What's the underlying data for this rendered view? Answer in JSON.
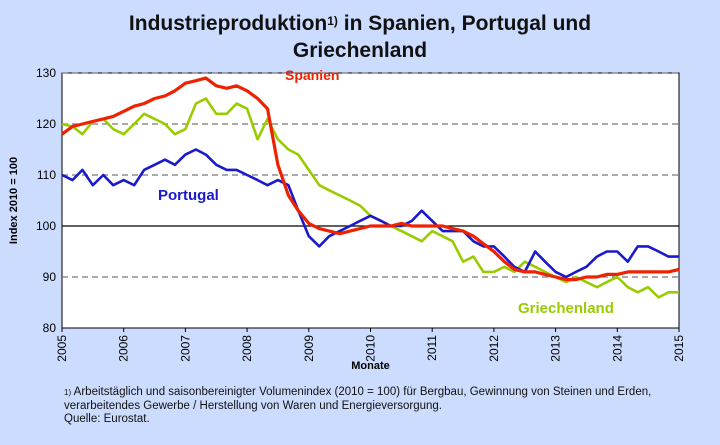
{
  "title": {
    "line1": "Industrieproduktion",
    "sup": "1)",
    "line1_rest": " in Spanien, Portugal und",
    "line2": "Griechenland"
  },
  "footnote": {
    "marker": "1)",
    "text": " Arbeitstäglich und saisonbereinigter Volumenindex (2010 = 100) für Bergbau, Gewinnung von Steinen und Erden, verarbeitendes Gewerbe / Herstellung von Waren und Energieversorgung.",
    "source": "Quelle: Eurostat."
  },
  "chart_data": {
    "type": "line",
    "xlabel": "Monate",
    "ylabel": "Index 2010 = 100",
    "xlim": [
      2005,
      2015
    ],
    "ylim": [
      80,
      130
    ],
    "yticks": [
      80,
      90,
      100,
      110,
      120,
      130
    ],
    "xticks": [
      "2005",
      "2006",
      "2007",
      "2008",
      "2009",
      "2010",
      "2011",
      "2012",
      "2013",
      "2014",
      "2015"
    ],
    "grid": "horizontal-dashed",
    "series": [
      {
        "name": "Griechenland",
        "color": "#99cc00",
        "x": [
          2005.0,
          2005.17,
          2005.33,
          2005.5,
          2005.67,
          2005.83,
          2006.0,
          2006.17,
          2006.33,
          2006.5,
          2006.67,
          2006.83,
          2007.0,
          2007.17,
          2007.33,
          2007.5,
          2007.67,
          2007.83,
          2008.0,
          2008.17,
          2008.33,
          2008.5,
          2008.67,
          2008.83,
          2009.0,
          2009.17,
          2009.33,
          2009.5,
          2009.67,
          2009.83,
          2010.0,
          2010.17,
          2010.33,
          2010.5,
          2010.67,
          2010.83,
          2011.0,
          2011.17,
          2011.33,
          2011.5,
          2011.67,
          2011.83,
          2012.0,
          2012.17,
          2012.33,
          2012.5,
          2012.67,
          2012.83,
          2013.0,
          2013.17,
          2013.33,
          2013.5,
          2013.67,
          2013.83,
          2014.0,
          2014.17,
          2014.33,
          2014.5,
          2014.67,
          2014.83,
          2015.0
        ],
        "values": [
          120,
          119.5,
          118,
          120.5,
          121,
          119,
          118,
          120,
          122,
          121,
          120,
          118,
          119,
          124,
          125,
          122,
          122,
          124,
          123,
          117,
          121,
          117,
          115,
          114,
          111,
          108,
          107,
          106,
          105,
          104,
          102,
          101,
          100,
          99,
          98,
          97,
          99,
          98,
          97,
          93,
          94,
          91,
          91,
          92,
          91,
          93,
          92,
          91,
          90,
          89,
          90,
          89,
          88,
          89,
          90,
          88,
          87,
          88,
          86,
          87,
          87
        ]
      },
      {
        "name": "Portugal",
        "color": "#1a1acc",
        "x": [
          2005.0,
          2005.17,
          2005.33,
          2005.5,
          2005.67,
          2005.83,
          2006.0,
          2006.17,
          2006.33,
          2006.5,
          2006.67,
          2006.83,
          2007.0,
          2007.17,
          2007.33,
          2007.5,
          2007.67,
          2007.83,
          2008.0,
          2008.17,
          2008.33,
          2008.5,
          2008.67,
          2008.83,
          2009.0,
          2009.17,
          2009.33,
          2009.5,
          2009.67,
          2009.83,
          2010.0,
          2010.17,
          2010.33,
          2010.5,
          2010.67,
          2010.83,
          2011.0,
          2011.17,
          2011.33,
          2011.5,
          2011.67,
          2011.83,
          2012.0,
          2012.17,
          2012.33,
          2012.5,
          2012.67,
          2012.83,
          2013.0,
          2013.17,
          2013.33,
          2013.5,
          2013.67,
          2013.83,
          2014.0,
          2014.17,
          2014.33,
          2014.5,
          2014.67,
          2014.83,
          2015.0
        ],
        "values": [
          110,
          109,
          111,
          108,
          110,
          108,
          109,
          108,
          111,
          112,
          113,
          112,
          114,
          115,
          114,
          112,
          111,
          111,
          110,
          109,
          108,
          109,
          108,
          103,
          98,
          96,
          98,
          99,
          100,
          101,
          102,
          101,
          100,
          100,
          101,
          103,
          101,
          99,
          99,
          99,
          97,
          96,
          96,
          94,
          92,
          91,
          95,
          93,
          91,
          90,
          91,
          92,
          94,
          95,
          95,
          93,
          96,
          96,
          95,
          94,
          94
        ]
      },
      {
        "name": "Spanien",
        "color": "#ee2200",
        "x": [
          2005.0,
          2005.17,
          2005.33,
          2005.5,
          2005.67,
          2005.83,
          2006.0,
          2006.17,
          2006.33,
          2006.5,
          2006.67,
          2006.83,
          2007.0,
          2007.17,
          2007.33,
          2007.5,
          2007.67,
          2007.83,
          2008.0,
          2008.17,
          2008.33,
          2008.5,
          2008.67,
          2008.83,
          2009.0,
          2009.17,
          2009.33,
          2009.5,
          2009.67,
          2009.83,
          2010.0,
          2010.17,
          2010.33,
          2010.5,
          2010.67,
          2010.83,
          2011.0,
          2011.17,
          2011.33,
          2011.5,
          2011.67,
          2011.83,
          2012.0,
          2012.17,
          2012.33,
          2012.5,
          2012.67,
          2012.83,
          2013.0,
          2013.17,
          2013.33,
          2013.5,
          2013.67,
          2013.83,
          2014.0,
          2014.17,
          2014.33,
          2014.5,
          2014.67,
          2014.83,
          2015.0
        ],
        "values": [
          118,
          119.5,
          120,
          120.5,
          121,
          121.5,
          122.5,
          123.5,
          124,
          125,
          125.5,
          126.5,
          128,
          128.5,
          129,
          127.5,
          127,
          127.5,
          126.5,
          125,
          123,
          112,
          106,
          103,
          100.5,
          99.5,
          99,
          98.5,
          99,
          99.5,
          100,
          100,
          100,
          100.5,
          100,
          100,
          100,
          100,
          99.5,
          99,
          98,
          96.5,
          95,
          93,
          91.5,
          91,
          91,
          90.5,
          90,
          89.5,
          89.5,
          90,
          90,
          90.5,
          90.5,
          91,
          91,
          91,
          91,
          91,
          91.5
        ]
      }
    ],
    "labels": {
      "spanien": "Spanien",
      "portugal": "Portugal",
      "griechenland": "Griechenland"
    }
  }
}
